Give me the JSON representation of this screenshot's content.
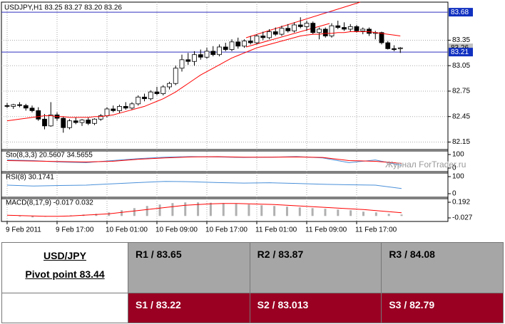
{
  "chart_data": {
    "type": "candlestick",
    "title": "USDJPY,H1  83.25 83.27 83.20 83.26",
    "categories": [
      "9 Feb 2011",
      null,
      null,
      null,
      null,
      null,
      null,
      null,
      "9 Feb 17:00",
      null,
      null,
      null,
      null,
      null,
      null,
      null,
      "10 Feb 01:00",
      null,
      null,
      null,
      null,
      null,
      null,
      null,
      "10 Feb 09:00",
      null,
      null,
      null,
      null,
      null,
      null,
      null,
      "10 Feb 17:00",
      null,
      null,
      null,
      null,
      null,
      null,
      null,
      "11 Feb 01:00",
      null,
      null,
      null,
      null,
      null,
      null,
      null,
      "11 Feb 09:00",
      null,
      null,
      null,
      null,
      null,
      null,
      null,
      "11 Feb 17:00",
      null,
      null,
      null,
      null,
      null,
      null,
      null
    ],
    "ohlc": [
      [
        82.58,
        82.61,
        82.55,
        82.57
      ],
      [
        82.57,
        82.6,
        82.54,
        82.59
      ],
      [
        82.59,
        82.62,
        82.56,
        82.58
      ],
      [
        82.58,
        82.6,
        82.52,
        82.55
      ],
      [
        82.55,
        82.58,
        82.5,
        82.52
      ],
      [
        82.52,
        82.56,
        82.4,
        82.42
      ],
      [
        82.42,
        82.48,
        82.3,
        82.34
      ],
      [
        82.34,
        82.62,
        82.33,
        82.47
      ],
      [
        82.47,
        82.5,
        82.4,
        82.43
      ],
      [
        82.43,
        82.45,
        82.26,
        82.32
      ],
      [
        82.32,
        82.42,
        82.3,
        82.4
      ],
      [
        82.4,
        82.44,
        82.36,
        82.38
      ],
      [
        82.38,
        82.42,
        82.34,
        82.41
      ],
      [
        82.41,
        82.44,
        82.35,
        82.37
      ],
      [
        82.37,
        82.43,
        82.35,
        82.42
      ],
      [
        82.42,
        82.48,
        82.4,
        82.46
      ],
      [
        82.46,
        82.56,
        82.44,
        82.54
      ],
      [
        82.54,
        82.58,
        82.5,
        82.52
      ],
      [
        82.52,
        82.59,
        82.49,
        82.57
      ],
      [
        82.57,
        82.62,
        82.53,
        82.55
      ],
      [
        82.55,
        82.62,
        82.53,
        82.6
      ],
      [
        82.6,
        82.7,
        82.58,
        82.68
      ],
      [
        82.68,
        82.72,
        82.63,
        82.66
      ],
      [
        82.66,
        82.76,
        82.64,
        82.74
      ],
      [
        82.74,
        82.8,
        82.7,
        82.72
      ],
      [
        82.72,
        82.82,
        82.7,
        82.8
      ],
      [
        82.8,
        82.86,
        82.77,
        82.84
      ],
      [
        82.84,
        83.05,
        82.82,
        83.02
      ],
      [
        83.02,
        83.18,
        82.98,
        83.12
      ],
      [
        83.12,
        83.2,
        83.06,
        83.1
      ],
      [
        83.1,
        83.22,
        83.05,
        83.18
      ],
      [
        83.18,
        83.24,
        83.12,
        83.15
      ],
      [
        83.15,
        83.26,
        83.13,
        83.22
      ],
      [
        83.22,
        83.28,
        83.16,
        83.18
      ],
      [
        83.18,
        83.3,
        83.16,
        83.27
      ],
      [
        83.27,
        83.32,
        83.22,
        83.24
      ],
      [
        83.24,
        83.36,
        83.22,
        83.33
      ],
      [
        83.33,
        83.38,
        83.25,
        83.28
      ],
      [
        83.28,
        83.36,
        83.26,
        83.34
      ],
      [
        83.34,
        83.4,
        83.3,
        83.32
      ],
      [
        83.32,
        83.42,
        83.3,
        83.4
      ],
      [
        83.4,
        83.45,
        83.35,
        83.38
      ],
      [
        83.38,
        83.48,
        83.36,
        83.45
      ],
      [
        83.45,
        83.5,
        83.4,
        83.42
      ],
      [
        83.42,
        83.52,
        83.4,
        83.49
      ],
      [
        83.49,
        83.54,
        83.44,
        83.46
      ],
      [
        83.46,
        83.56,
        83.44,
        83.53
      ],
      [
        83.53,
        83.62,
        83.49,
        83.51
      ],
      [
        83.51,
        83.58,
        83.46,
        83.55
      ],
      [
        83.55,
        83.57,
        83.42,
        83.44
      ],
      [
        83.44,
        83.5,
        83.36,
        83.48
      ],
      [
        83.48,
        83.5,
        83.38,
        83.4
      ],
      [
        83.4,
        83.55,
        83.38,
        83.52
      ],
      [
        83.52,
        83.58,
        83.48,
        83.5
      ],
      [
        83.5,
        83.56,
        83.46,
        83.48
      ],
      [
        83.48,
        83.54,
        83.45,
        83.51
      ],
      [
        83.51,
        83.53,
        83.44,
        83.46
      ],
      [
        83.46,
        83.5,
        83.42,
        83.48
      ],
      [
        83.48,
        83.5,
        83.4,
        83.43
      ],
      [
        83.43,
        83.46,
        83.36,
        83.44
      ],
      [
        83.44,
        83.45,
        83.3,
        83.32
      ],
      [
        83.32,
        83.34,
        83.24,
        83.25
      ],
      [
        83.25,
        83.29,
        83.22,
        83.24
      ],
      [
        83.25,
        83.27,
        83.2,
        83.26
      ]
    ],
    "ma_color": "#ff0000",
    "ma_values": [
      82.4,
      82.41,
      82.42,
      82.43,
      82.44,
      82.45,
      82.46,
      82.46,
      82.45,
      82.45,
      82.44,
      82.44,
      82.44,
      82.44,
      82.45,
      82.45,
      82.46,
      82.47,
      82.49,
      82.51,
      82.53,
      82.55,
      82.57,
      82.6,
      82.63,
      82.66,
      82.7,
      82.74,
      82.79,
      82.84,
      82.89,
      82.94,
      82.98,
      83.02,
      83.06,
      83.1,
      83.14,
      83.17,
      83.2,
      83.23,
      83.26,
      83.28,
      83.3,
      83.32,
      83.34,
      83.36,
      83.38,
      83.4,
      83.41,
      83.42,
      83.42,
      83.43,
      83.43,
      83.44,
      83.44,
      83.45,
      83.45,
      83.45,
      83.45,
      83.44,
      83.43,
      83.42,
      83.41,
      83.4
    ],
    "ylim": [
      82.07,
      83.79
    ],
    "yticks": [
      82.15,
      82.45,
      82.75,
      83.05,
      83.35
    ],
    "price_lines": [
      83.68,
      83.21
    ],
    "last_price": 83.26,
    "grid": true,
    "watermark": "Журнал ForTrader.ru",
    "indicators": [
      {
        "label": "Sto(8,3,3) 20.5607 34.5655",
        "ylim": [
          0,
          100
        ],
        "yticks": [
          100,
          0
        ],
        "series": [
          {
            "color": "#4a90d9",
            "values": [
              60,
              55,
              45,
              40,
              55,
              70,
              80,
              85,
              82,
              78,
              80,
              85,
              75,
              40,
              60,
              20
            ]
          },
          {
            "color": "#ff0000",
            "values": [
              55,
              52,
              48,
              45,
              50,
              65,
              75,
              82,
              84,
              80,
              80,
              82,
              78,
              55,
              50,
              35
            ]
          }
        ]
      },
      {
        "label": "RSI(8) 30.1741",
        "ylim": [
          0,
          100
        ],
        "yticks": [
          100,
          0
        ],
        "series": [
          {
            "color": "#4a90d9",
            "values": [
              50,
              45,
              48,
              50,
              58,
              65,
              72,
              70,
              65,
              62,
              64,
              60,
              55,
              52,
              50,
              30
            ]
          }
        ]
      },
      {
        "label": "MACD(8,17,9) -0.017 0.032",
        "ylim": [
          -0.027,
          0.192
        ],
        "yticks": [
          0.192,
          -0.027
        ],
        "histogram": {
          "color": "#b0b0b0",
          "values": [
            0,
            -0.01,
            -0.02,
            -0.01,
            0,
            0.01,
            0.02,
            0.03,
            0.05,
            0.08,
            0.11,
            0.14,
            0.16,
            0.18,
            0.19,
            0.19,
            0.185,
            0.18,
            0.17,
            0.16,
            0.15,
            0.14,
            0.13,
            0.12,
            0.11,
            0.1,
            0.09,
            0.08,
            0.06,
            0.05,
            0.03,
            0.02
          ]
        },
        "series": [
          {
            "color": "#ff0000",
            "values": [
              0.01,
              0.005,
              0,
              -0.005,
              -0.005,
              0,
              0.01,
              0.02,
              0.03,
              0.05,
              0.07,
              0.09,
              0.11,
              0.13,
              0.15,
              0.16,
              0.17,
              0.175,
              0.175,
              0.17,
              0.165,
              0.16,
              0.15,
              0.14,
              0.13,
              0.12,
              0.11,
              0.1,
              0.09,
              0.075,
              0.06,
              0.045
            ]
          }
        ]
      }
    ]
  },
  "table": {
    "pair": "USD/JPY",
    "pivot": "Pivot point 83.44",
    "resistance": [
      "R1 / 83.65",
      "R2 / 83.87",
      "R3 / 84.08"
    ],
    "support": [
      "S1 / 83.22",
      "S2 / 83.013",
      "S3 / 82.79"
    ]
  }
}
